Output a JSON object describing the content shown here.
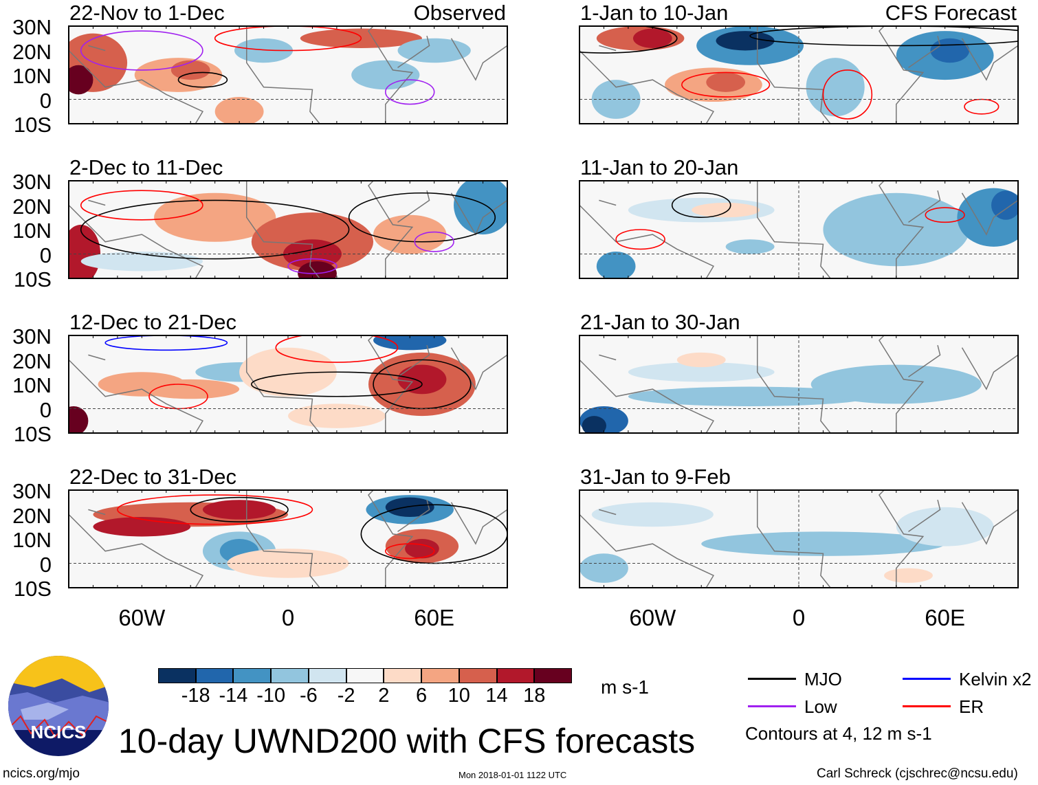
{
  "panels": [
    {
      "title": "22-Nov to 1-Dec",
      "label": "Observed"
    },
    {
      "title": "1-Jan to 10-Jan",
      "label": "CFS Forecast"
    },
    {
      "title": "2-Dec to 11-Dec",
      "label": ""
    },
    {
      "title": "11-Jan to 20-Jan",
      "label": ""
    },
    {
      "title": "12-Dec to 21-Dec",
      "label": ""
    },
    {
      "title": "21-Jan to 30-Jan",
      "label": ""
    },
    {
      "title": "22-Dec to 31-Dec",
      "label": ""
    },
    {
      "title": "31-Jan to 9-Feb",
      "label": ""
    }
  ],
  "lat_labels": [
    "30N",
    "20N",
    "10N",
    "0",
    "10S"
  ],
  "lon_labels": [
    "60W",
    "0",
    "60E"
  ],
  "colorbar": {
    "colors": [
      "#0a3161",
      "#2166ac",
      "#4393c3",
      "#92c5de",
      "#d1e5f0",
      "#f7f7f7",
      "#fddbc7",
      "#f4a582",
      "#d6604d",
      "#b2182b",
      "#67001f"
    ],
    "labels": [
      "-18",
      "-14",
      "-10",
      "-6",
      "-2",
      "2",
      "6",
      "10",
      "14",
      "18"
    ],
    "units": "m s-1"
  },
  "legend": {
    "items": [
      {
        "label": "MJO",
        "color": "#000000"
      },
      {
        "label": "Kelvin x2",
        "color": "#0000ff"
      },
      {
        "label": "Low",
        "color": "#a020f0"
      },
      {
        "label": "ER",
        "color": "#ff0000"
      }
    ],
    "note": "Contours at 4, 12 m s-1"
  },
  "logo_text": "NCICS",
  "title": "10-day UWND200 with CFS forecasts",
  "footer": {
    "left": "ncics.org/mjo",
    "center": "Mon 2018-01-01 1122 UTC",
    "right": "Carl Schreck (cjschrec@ncsu.edu)"
  }
}
